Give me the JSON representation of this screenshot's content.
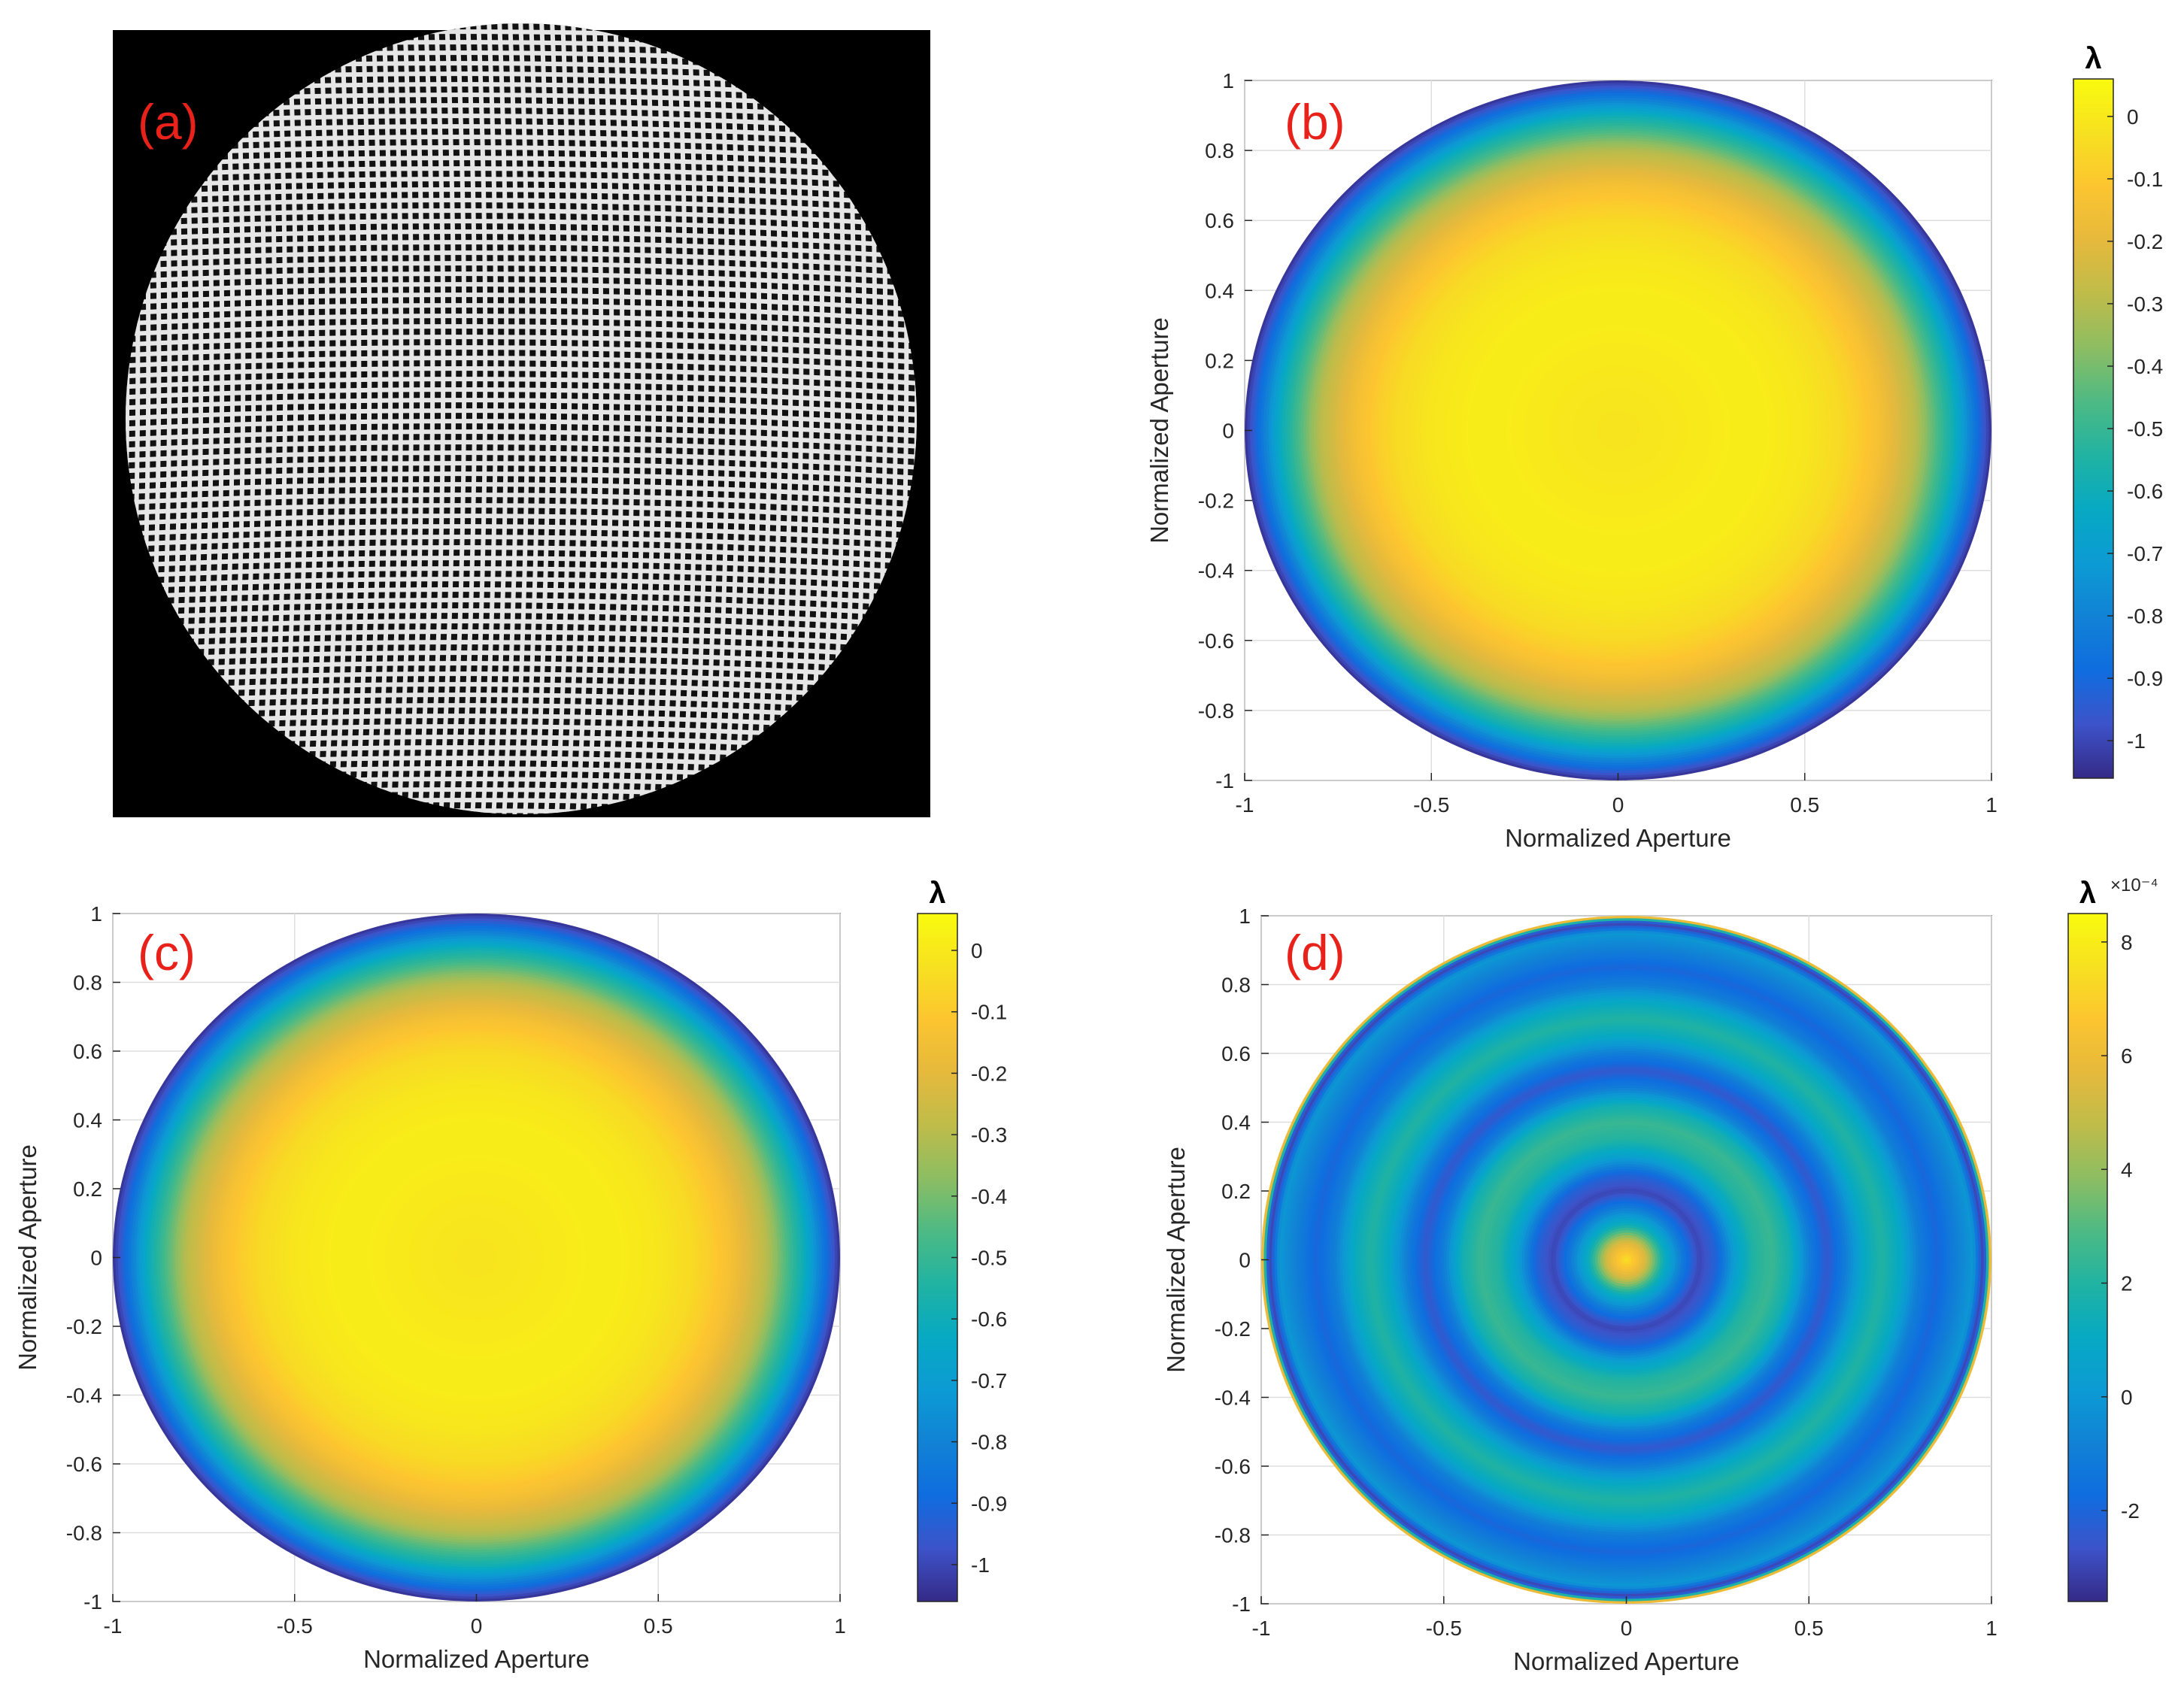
{
  "colors": {
    "panel_label": "#e8211a",
    "axis": "#262626",
    "grid": "#dedede",
    "parula": [
      "#352a87",
      "#3d53c9",
      "#0f6ddf",
      "#1182d5",
      "#0c9bd4",
      "#07a9c3",
      "#21b3a2",
      "#4dba84",
      "#8dbd62",
      "#bfbc4a",
      "#e6b93c",
      "#fcc530",
      "#f7e120",
      "#f9fb0e"
    ]
  },
  "chart_data": [
    {
      "id": "a",
      "type": "image",
      "panel_label": "(a)",
      "content": "circular grid interference pattern on black background"
    },
    {
      "id": "b",
      "type": "heatmap",
      "panel_label": "(b)",
      "xlabel": "Normalized Aperture",
      "ylabel": "Normalized Aperture",
      "xlim": [
        -1,
        1
      ],
      "ylim": [
        -1,
        1
      ],
      "xticks": [
        "-1",
        "-0.5",
        "0",
        "0.5",
        "1"
      ],
      "yticks": [
        "-1",
        "-0.8",
        "-0.6",
        "-0.4",
        "-0.2",
        "0",
        "0.2",
        "0.4",
        "0.6",
        "0.8",
        "1"
      ],
      "grid": true,
      "colorbar": {
        "title": "λ",
        "exponent": "",
        "range": [
          -1.06,
          0.06
        ],
        "ticks": [
          "0",
          "-0.1",
          "-0.2",
          "-0.3",
          "-0.4",
          "-0.5",
          "-0.6",
          "-0.7",
          "-0.8",
          "-0.9",
          "-1"
        ],
        "tick_values": [
          0,
          -0.1,
          -0.2,
          -0.3,
          -0.4,
          -0.5,
          -0.6,
          -0.7,
          -0.8,
          -0.9,
          -1
        ]
      },
      "radial_profile": {
        "r": [
          0.0,
          0.1,
          0.2,
          0.3,
          0.4,
          0.5,
          0.6,
          0.7,
          0.8,
          0.9,
          1.0
        ],
        "value": [
          -0.02,
          -0.01,
          0.0,
          0.01,
          0.01,
          -0.01,
          -0.05,
          -0.14,
          -0.3,
          -0.6,
          -1.05
        ]
      }
    },
    {
      "id": "c",
      "type": "heatmap",
      "panel_label": "(c)",
      "xlabel": "Normalized Aperture",
      "ylabel": "Normalized Aperture",
      "xlim": [
        -1,
        1
      ],
      "ylim": [
        -1,
        1
      ],
      "xticks": [
        "-1",
        "-0.5",
        "0",
        "0.5",
        "1"
      ],
      "yticks": [
        "-1",
        "-0.8",
        "-0.6",
        "-0.4",
        "-0.2",
        "0",
        "0.2",
        "0.4",
        "0.6",
        "0.8",
        "1"
      ],
      "grid": true,
      "colorbar": {
        "title": "λ",
        "exponent": "",
        "range": [
          -1.06,
          0.06
        ],
        "ticks": [
          "0",
          "-0.1",
          "-0.2",
          "-0.3",
          "-0.4",
          "-0.5",
          "-0.6",
          "-0.7",
          "-0.8",
          "-0.9",
          "-1"
        ],
        "tick_values": [
          0,
          -0.1,
          -0.2,
          -0.3,
          -0.4,
          -0.5,
          -0.6,
          -0.7,
          -0.8,
          -0.9,
          -1
        ]
      },
      "radial_profile": {
        "r": [
          0.0,
          0.1,
          0.2,
          0.3,
          0.4,
          0.5,
          0.6,
          0.7,
          0.8,
          0.9,
          1.0
        ],
        "value": [
          -0.02,
          -0.01,
          0.0,
          0.01,
          0.01,
          -0.01,
          -0.05,
          -0.14,
          -0.3,
          -0.6,
          -1.05
        ]
      }
    },
    {
      "id": "d",
      "type": "heatmap",
      "panel_label": "(d)",
      "xlabel": "Normalized Aperture",
      "ylabel": "Normalized Aperture",
      "xlim": [
        -1,
        1
      ],
      "ylim": [
        -1,
        1
      ],
      "xticks": [
        "-1",
        "-0.5",
        "0",
        "0.5",
        "1"
      ],
      "yticks": [
        "-1",
        "-0.8",
        "-0.6",
        "-0.4",
        "-0.2",
        "0",
        "0.2",
        "0.4",
        "0.6",
        "0.8",
        "1"
      ],
      "grid": true,
      "colorbar": {
        "title": "λ",
        "exponent": "×10⁻⁴",
        "range": [
          -3.6,
          8.5
        ],
        "ticks": [
          "8",
          "6",
          "4",
          "2",
          "0",
          "-2"
        ],
        "tick_values": [
          8,
          6,
          4,
          2,
          0,
          -2
        ]
      },
      "radial_profile": {
        "r": [
          0.0,
          0.05,
          0.1,
          0.15,
          0.2,
          0.25,
          0.3,
          0.35,
          0.4,
          0.45,
          0.5,
          0.55,
          0.6,
          0.65,
          0.7,
          0.75,
          0.8,
          0.85,
          0.9,
          0.95,
          0.98,
          1.0
        ],
        "value": [
          7.5,
          5.5,
          1.5,
          -1.0,
          -3.0,
          -2.0,
          0.5,
          2.0,
          2.5,
          1.5,
          -1.0,
          -2.5,
          -1.0,
          1.0,
          2.0,
          1.0,
          -1.0,
          -2.0,
          -1.0,
          0.0,
          -3.5,
          8.0
        ]
      }
    }
  ]
}
